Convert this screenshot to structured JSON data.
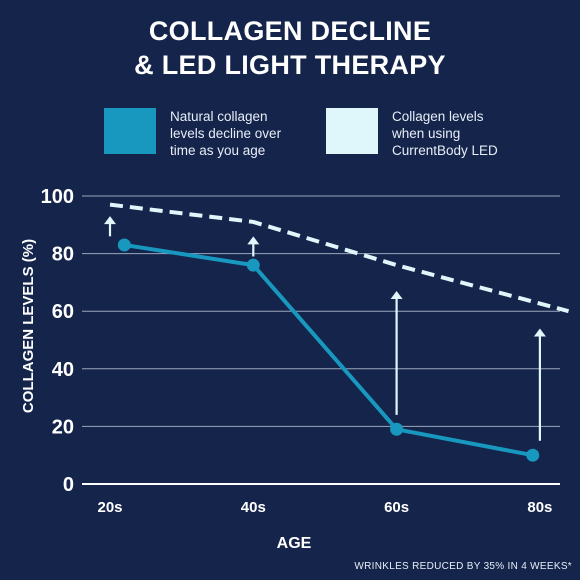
{
  "title_line1": "COLLAGEN DECLINE",
  "title_line2": "& LED LIGHT THERAPY",
  "footnote": "WRINKLES REDUCED BY 35% IN 4 WEEKS*",
  "colors": {
    "background": "#14244a",
    "natural": "#1897bf",
    "led": "#dff6fb",
    "grid": "#c9d3e3"
  },
  "chart_data": {
    "type": "line",
    "xlabel": "AGE",
    "ylabel": "COLLAGEN LEVELS (%)",
    "categories": [
      "20s",
      "40s",
      "60s",
      "80s"
    ],
    "ylim": [
      0,
      100
    ],
    "yticks": [
      0,
      20,
      40,
      60,
      80,
      100
    ],
    "grid": true,
    "series": [
      {
        "name": "Natural collagen levels decline over time as you age",
        "legend_lines": [
          "Natural collagen",
          "levels decline over",
          "time as you age"
        ],
        "style": "solid-with-markers",
        "x": [
          0.1,
          1.0,
          2.0,
          2.95
        ],
        "values": [
          83,
          76,
          19,
          10
        ]
      },
      {
        "name": "Collagen levels when using CurrentBody LED",
        "legend_lines": [
          "Collagen levels",
          "when using",
          "CurrentBody LED"
        ],
        "style": "dashed",
        "x": [
          0.0,
          1.0,
          2.0,
          3.2
        ],
        "values": [
          97,
          91,
          76,
          60
        ]
      }
    ],
    "arrows": [
      {
        "x": 0.0,
        "from": 86,
        "to": 93
      },
      {
        "x": 1.0,
        "from": 79,
        "to": 86
      },
      {
        "x": 2.0,
        "from": 24,
        "to": 67
      },
      {
        "x": 3.0,
        "from": 15,
        "to": 54
      }
    ]
  }
}
